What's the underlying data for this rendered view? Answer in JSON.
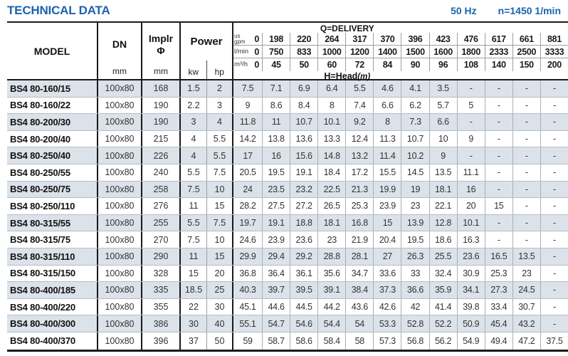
{
  "page": {
    "title": "TECHNICAL DATA",
    "frequency": "50 Hz",
    "speed": "n=1450 1/min"
  },
  "colors": {
    "accent_blue": "#1b63ae",
    "shaded_row": "#dbe2e9",
    "border_dark": "#1a1a1a"
  },
  "header": {
    "model": "MODEL",
    "dn": "DN",
    "mm_unit": "mm",
    "implr_line1": "Implr",
    "implr_line2": "Φ",
    "power": "Power",
    "kw": "kw",
    "hp": "hp",
    "q_delivery": "Q=DELIVERY",
    "h_head": "H=Head",
    "h_head_unit": "(m)"
  },
  "table": {
    "unit_rows": [
      {
        "label": "us\ngpm",
        "values": [
          "0",
          "198",
          "220",
          "264",
          "317",
          "370",
          "396",
          "423",
          "476",
          "617",
          "661",
          "881"
        ]
      },
      {
        "label": "l/min",
        "values": [
          "0",
          "750",
          "833",
          "1000",
          "1200",
          "1400",
          "1500",
          "1600",
          "1800",
          "2333",
          "2500",
          "3333"
        ]
      },
      {
        "label": "m³/h",
        "values": [
          "0",
          "45",
          "50",
          "60",
          "72",
          "84",
          "90",
          "96",
          "108",
          "140",
          "150",
          "200"
        ]
      }
    ],
    "rows": [
      {
        "model": "BS4 80-160/15",
        "dn": "100x80",
        "implr": "168",
        "kw": "1.5",
        "hp": "2",
        "head": [
          "7.5",
          "7.1",
          "6.9",
          "6.4",
          "5.5",
          "4.6",
          "4.1",
          "3.5",
          "-",
          "-",
          "-",
          "-"
        ]
      },
      {
        "model": "BS4 80-160/22",
        "dn": "100x80",
        "implr": "190",
        "kw": "2.2",
        "hp": "3",
        "head": [
          "9",
          "8.6",
          "8.4",
          "8",
          "7.4",
          "6.6",
          "6.2",
          "5.7",
          "5",
          "-",
          "-",
          "-"
        ]
      },
      {
        "model": "BS4 80-200/30",
        "dn": "100x80",
        "implr": "190",
        "kw": "3",
        "hp": "4",
        "head": [
          "11.8",
          "11",
          "10.7",
          "10.1",
          "9.2",
          "8",
          "7.3",
          "6.6",
          "-",
          "-",
          "-",
          "-"
        ]
      },
      {
        "model": "BS4 80-200/40",
        "dn": "100x80",
        "implr": "215",
        "kw": "4",
        "hp": "5.5",
        "head": [
          "14.2",
          "13.8",
          "13.6",
          "13.3",
          "12.4",
          "11.3",
          "10.7",
          "10",
          "9",
          "-",
          "-",
          "-"
        ]
      },
      {
        "model": "BS4 80-250/40",
        "dn": "100x80",
        "implr": "226",
        "kw": "4",
        "hp": "5.5",
        "head": [
          "17",
          "16",
          "15.6",
          "14.8",
          "13.2",
          "11.4",
          "10.2",
          "9",
          "-",
          "-",
          "-",
          "-"
        ]
      },
      {
        "model": "BS4 80-250/55",
        "dn": "100x80",
        "implr": "240",
        "kw": "5.5",
        "hp": "7.5",
        "head": [
          "20.5",
          "19.5",
          "19.1",
          "18.4",
          "17.2",
          "15.5",
          "14.5",
          "13.5",
          "11.1",
          "-",
          "-",
          "-"
        ]
      },
      {
        "model": "BS4 80-250/75",
        "dn": "100x80",
        "implr": "258",
        "kw": "7.5",
        "hp": "10",
        "head": [
          "24",
          "23.5",
          "23.2",
          "22.5",
          "21.3",
          "19.9",
          "19",
          "18.1",
          "16",
          "-",
          "-",
          "-"
        ]
      },
      {
        "model": "BS4 80-250/110",
        "dn": "100x80",
        "implr": "276",
        "kw": "11",
        "hp": "15",
        "head": [
          "28.2",
          "27.5",
          "27.2",
          "26.5",
          "25.3",
          "23.9",
          "23",
          "22.1",
          "20",
          "15",
          "-",
          "-"
        ]
      },
      {
        "model": "BS4 80-315/55",
        "dn": "100x80",
        "implr": "255",
        "kw": "5.5",
        "hp": "7.5",
        "head": [
          "19.7",
          "19.1",
          "18.8",
          "18.1",
          "16.8",
          "15",
          "13.9",
          "12.8",
          "10.1",
          "-",
          "-",
          "-"
        ]
      },
      {
        "model": "BS4 80-315/75",
        "dn": "100x80",
        "implr": "270",
        "kw": "7.5",
        "hp": "10",
        "head": [
          "24.6",
          "23.9",
          "23.6",
          "23",
          "21.9",
          "20.4",
          "19.5",
          "18.6",
          "16.3",
          "-",
          "-",
          "-"
        ]
      },
      {
        "model": "BS4 80-315/110",
        "dn": "100x80",
        "implr": "290",
        "kw": "11",
        "hp": "15",
        "head": [
          "29.9",
          "29.4",
          "29.2",
          "28.8",
          "28.1",
          "27",
          "26.3",
          "25.5",
          "23.6",
          "16.5",
          "13.5",
          "-"
        ]
      },
      {
        "model": "BS4 80-315/150",
        "dn": "100x80",
        "implr": "328",
        "kw": "15",
        "hp": "20",
        "head": [
          "36.8",
          "36.4",
          "36.1",
          "35.6",
          "34.7",
          "33.6",
          "33",
          "32.4",
          "30.9",
          "25.3",
          "23",
          "-"
        ]
      },
      {
        "model": "BS4 80-400/185",
        "dn": "100x80",
        "implr": "335",
        "kw": "18.5",
        "hp": "25",
        "head": [
          "40.3",
          "39.7",
          "39.5",
          "39.1",
          "38.4",
          "37.3",
          "36.6",
          "35.9",
          "34.1",
          "27.3",
          "24.5",
          "-"
        ]
      },
      {
        "model": "BS4 80-400/220",
        "dn": "100x80",
        "implr": "355",
        "kw": "22",
        "hp": "30",
        "head": [
          "45.1",
          "44.6",
          "44.5",
          "44.2",
          "43.6",
          "42.6",
          "42",
          "41.4",
          "39.8",
          "33.4",
          "30.7",
          "-"
        ]
      },
      {
        "model": "BS4 80-400/300",
        "dn": "100x80",
        "implr": "386",
        "kw": "30",
        "hp": "40",
        "head": [
          "55.1",
          "54.7",
          "54.6",
          "54.4",
          "54",
          "53.3",
          "52.8",
          "52.2",
          "50.9",
          "45.4",
          "43.2",
          "-"
        ]
      },
      {
        "model": "BS4 80-400/370",
        "dn": "100x80",
        "implr": "396",
        "kw": "37",
        "hp": "50",
        "head": [
          "59",
          "58.7",
          "58.6",
          "58.4",
          "58",
          "57.3",
          "56.8",
          "56.2",
          "54.9",
          "49.4",
          "47.2",
          "37.5"
        ]
      }
    ]
  }
}
